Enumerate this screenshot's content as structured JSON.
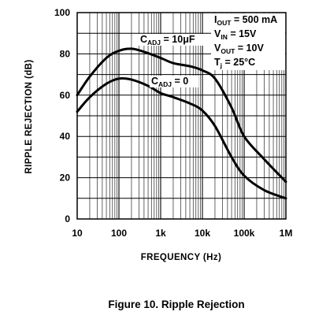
{
  "figure": {
    "caption": "Figure 10. Ripple Rejection"
  },
  "chart_data": {
    "type": "line",
    "title": "",
    "xlabel": "FREQUENCY (Hz)",
    "ylabel": "RIPPLE REJECTION (dB)",
    "xscale": "log",
    "xlim": [
      10,
      1000000
    ],
    "ylim": [
      0,
      100
    ],
    "grid": true,
    "x_tick_values": [
      10,
      100,
      1000,
      10000,
      100000,
      1000000
    ],
    "x_tick_labels": [
      "10",
      "100",
      "1k",
      "10k",
      "100k",
      "1M"
    ],
    "y_tick_values": [
      0,
      20,
      40,
      60,
      80,
      100
    ],
    "y_tick_labels": [
      "0",
      "20",
      "40",
      "60",
      "80",
      "100"
    ],
    "conditions": [
      {
        "main": "I",
        "sub": "OUT",
        "rest": " = 500 mA"
      },
      {
        "main": "V",
        "sub": "IN",
        "rest": " = 15V"
      },
      {
        "main": "V",
        "sub": "OUT",
        "rest": " = 10V"
      },
      {
        "main": "T",
        "sub": "j",
        "rest": " = 25°C"
      }
    ],
    "series": [
      {
        "label_main": "C",
        "label_sub": "ADJ",
        "label_rest": " = 10μF",
        "x": [
          10,
          20,
          50,
          100,
          200,
          400,
          1000,
          2000,
          5000,
          10000,
          20000,
          50000,
          100000,
          300000,
          1000000
        ],
        "y": [
          60,
          69,
          78,
          81.5,
          82.5,
          81,
          78,
          75.5,
          74,
          72,
          68,
          54,
          40,
          29,
          18
        ]
      },
      {
        "label_main": "C",
        "label_sub": "ADJ",
        "label_rest": " = 0",
        "x": [
          10,
          20,
          50,
          100,
          200,
          500,
          1000,
          2000,
          5000,
          10000,
          20000,
          50000,
          100000,
          300000,
          1000000
        ],
        "y": [
          52,
          59,
          65.5,
          68,
          67.5,
          64.5,
          61,
          59,
          56,
          52.5,
          45,
          30,
          21,
          14,
          10
        ]
      }
    ]
  }
}
